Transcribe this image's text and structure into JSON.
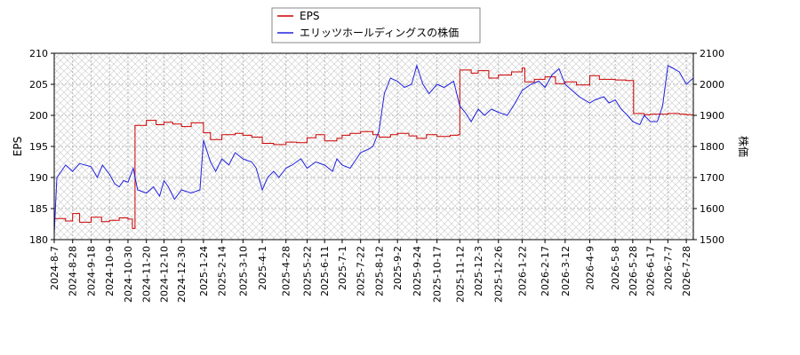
{
  "chart_data": {
    "type": "line",
    "title": "",
    "ylabel_left": "EPS",
    "ylabel_right": "株価",
    "ylim_left": [
      180,
      210
    ],
    "ylim_right": [
      1500,
      2100
    ],
    "yticks_left": [
      180,
      185,
      190,
      195,
      200,
      205,
      210
    ],
    "yticks_right": [
      1500,
      1600,
      1700,
      1800,
      1900,
      2000,
      2100
    ],
    "xlim": [
      "2024-08-07",
      "2026-08-05"
    ],
    "xticks": [
      "2024-8-7",
      "2024-8-28",
      "2024-9-18",
      "2024-10-9",
      "2024-10-30",
      "2024-11-20",
      "2024-12-10",
      "2024-12-30",
      "2025-1-24",
      "2025-2-14",
      "2025-3-10",
      "2025-4-1",
      "2025-4-28",
      "2025-5-22",
      "2025-6-11",
      "2025-7-1",
      "2025-7-22",
      "2025-8-12",
      "2025-9-2",
      "2025-9-24",
      "2025-10-17",
      "2025-11-12",
      "2025-12-3",
      "2025-12-26",
      "2026-1-22",
      "2026-2-17",
      "2026-3-12",
      "2026-4-9",
      "2026-5-8",
      "2026-5-28",
      "2026-6-17",
      "2026-7-7",
      "2026-7-28"
    ],
    "grid": true,
    "legend_position": "top-center",
    "series": [
      {
        "name": "EPS",
        "axis": "left",
        "color": "#cc0000",
        "points": [
          [
            "2024-08-07",
            183.4
          ],
          [
            "2024-08-20",
            183.0
          ],
          [
            "2024-08-28",
            184.2
          ],
          [
            "2024-09-05",
            182.8
          ],
          [
            "2024-09-18",
            183.6
          ],
          [
            "2024-09-30",
            182.9
          ],
          [
            "2024-10-09",
            183.1
          ],
          [
            "2024-10-20",
            183.5
          ],
          [
            "2024-10-30",
            183.3
          ],
          [
            "2024-11-04",
            181.8
          ],
          [
            "2024-11-07",
            198.4
          ],
          [
            "2024-11-20",
            199.2
          ],
          [
            "2024-12-01",
            198.5
          ],
          [
            "2024-12-10",
            198.9
          ],
          [
            "2024-12-20",
            198.6
          ],
          [
            "2024-12-30",
            198.2
          ],
          [
            "2025-01-10",
            198.8
          ],
          [
            "2025-01-24",
            197.2
          ],
          [
            "2025-02-01",
            196.1
          ],
          [
            "2025-02-14",
            196.9
          ],
          [
            "2025-03-01",
            197.1
          ],
          [
            "2025-03-10",
            196.8
          ],
          [
            "2025-03-20",
            196.5
          ],
          [
            "2025-04-01",
            195.5
          ],
          [
            "2025-04-14",
            195.3
          ],
          [
            "2025-04-28",
            195.7
          ],
          [
            "2025-05-10",
            195.6
          ],
          [
            "2025-05-22",
            196.4
          ],
          [
            "2025-06-01",
            196.9
          ],
          [
            "2025-06-11",
            195.9
          ],
          [
            "2025-06-25",
            196.3
          ],
          [
            "2025-07-01",
            196.8
          ],
          [
            "2025-07-10",
            197.1
          ],
          [
            "2025-07-22",
            197.4
          ],
          [
            "2025-08-05",
            196.9
          ],
          [
            "2025-08-12",
            196.5
          ],
          [
            "2025-08-25",
            196.9
          ],
          [
            "2025-09-02",
            197.1
          ],
          [
            "2025-09-15",
            196.7
          ],
          [
            "2025-09-24",
            196.3
          ],
          [
            "2025-10-05",
            196.9
          ],
          [
            "2025-10-17",
            196.6
          ],
          [
            "2025-11-01",
            196.8
          ],
          [
            "2025-11-10",
            196.9
          ],
          [
            "2025-11-12",
            207.3
          ],
          [
            "2025-11-25",
            206.8
          ],
          [
            "2025-12-03",
            207.2
          ],
          [
            "2025-12-15",
            206.0
          ],
          [
            "2025-12-26",
            206.5
          ],
          [
            "2026-01-10",
            207.0
          ],
          [
            "2026-01-22",
            207.6
          ],
          [
            "2026-01-25",
            205.4
          ],
          [
            "2026-02-05",
            205.8
          ],
          [
            "2026-02-17",
            206.2
          ],
          [
            "2026-03-01",
            205.1
          ],
          [
            "2026-03-12",
            205.4
          ],
          [
            "2026-03-25",
            204.9
          ],
          [
            "2026-04-09",
            206.4
          ],
          [
            "2026-04-20",
            205.8
          ],
          [
            "2026-05-08",
            205.7
          ],
          [
            "2026-05-20",
            205.6
          ],
          [
            "2026-05-28",
            205.6
          ],
          [
            "2026-05-29",
            200.3
          ],
          [
            "2026-06-10",
            200.1
          ],
          [
            "2026-06-17",
            200.2
          ],
          [
            "2026-07-07",
            200.3
          ],
          [
            "2026-07-20",
            200.2
          ],
          [
            "2026-07-28",
            200.1
          ],
          [
            "2026-08-05",
            200.2
          ]
        ]
      },
      {
        "name": "エリッツホールディングスの株価",
        "axis": "right",
        "color": "#2222dd",
        "points": [
          [
            "2024-08-07",
            1520
          ],
          [
            "2024-08-10",
            1700
          ],
          [
            "2024-08-20",
            1740
          ],
          [
            "2024-08-28",
            1720
          ],
          [
            "2024-09-05",
            1745
          ],
          [
            "2024-09-18",
            1735
          ],
          [
            "2024-09-25",
            1700
          ],
          [
            "2024-10-01",
            1740
          ],
          [
            "2024-10-09",
            1710
          ],
          [
            "2024-10-15",
            1680
          ],
          [
            "2024-10-20",
            1670
          ],
          [
            "2024-10-25",
            1690
          ],
          [
            "2024-10-30",
            1685
          ],
          [
            "2024-11-05",
            1730
          ],
          [
            "2024-11-10",
            1660
          ],
          [
            "2024-11-20",
            1650
          ],
          [
            "2024-11-28",
            1670
          ],
          [
            "2024-12-05",
            1640
          ],
          [
            "2024-12-10",
            1690
          ],
          [
            "2024-12-15",
            1670
          ],
          [
            "2024-12-22",
            1630
          ],
          [
            "2024-12-30",
            1660
          ],
          [
            "2025-01-10",
            1650
          ],
          [
            "2025-01-20",
            1660
          ],
          [
            "2025-01-24",
            1820
          ],
          [
            "2025-02-01",
            1750
          ],
          [
            "2025-02-07",
            1720
          ],
          [
            "2025-02-14",
            1760
          ],
          [
            "2025-02-22",
            1740
          ],
          [
            "2025-03-01",
            1780
          ],
          [
            "2025-03-10",
            1760
          ],
          [
            "2025-03-20",
            1750
          ],
          [
            "2025-03-25",
            1730
          ],
          [
            "2025-04-01",
            1660
          ],
          [
            "2025-04-07",
            1700
          ],
          [
            "2025-04-14",
            1720
          ],
          [
            "2025-04-20",
            1700
          ],
          [
            "2025-04-28",
            1730
          ],
          [
            "2025-05-05",
            1740
          ],
          [
            "2025-05-15",
            1760
          ],
          [
            "2025-05-22",
            1730
          ],
          [
            "2025-06-01",
            1750
          ],
          [
            "2025-06-11",
            1740
          ],
          [
            "2025-06-20",
            1720
          ],
          [
            "2025-06-25",
            1760
          ],
          [
            "2025-07-01",
            1740
          ],
          [
            "2025-07-10",
            1730
          ],
          [
            "2025-07-22",
            1780
          ],
          [
            "2025-07-30",
            1790
          ],
          [
            "2025-08-05",
            1800
          ],
          [
            "2025-08-12",
            1850
          ],
          [
            "2025-08-18",
            1970
          ],
          [
            "2025-08-25",
            2020
          ],
          [
            "2025-09-02",
            2010
          ],
          [
            "2025-09-10",
            1990
          ],
          [
            "2025-09-18",
            2000
          ],
          [
            "2025-09-24",
            2060
          ],
          [
            "2025-10-01",
            2000
          ],
          [
            "2025-10-08",
            1970
          ],
          [
            "2025-10-17",
            2000
          ],
          [
            "2025-10-25",
            1990
          ],
          [
            "2025-11-05",
            2010
          ],
          [
            "2025-11-12",
            1930
          ],
          [
            "2025-11-18",
            1910
          ],
          [
            "2025-11-25",
            1880
          ],
          [
            "2025-12-03",
            1920
          ],
          [
            "2025-12-10",
            1900
          ],
          [
            "2025-12-18",
            1920
          ],
          [
            "2025-12-26",
            1910
          ],
          [
            "2026-01-05",
            1900
          ],
          [
            "2026-01-12",
            1930
          ],
          [
            "2026-01-22",
            1980
          ],
          [
            "2026-02-01",
            2000
          ],
          [
            "2026-02-10",
            2010
          ],
          [
            "2026-02-17",
            1990
          ],
          [
            "2026-02-25",
            2030
          ],
          [
            "2026-03-05",
            2050
          ],
          [
            "2026-03-12",
            2000
          ],
          [
            "2026-03-20",
            1980
          ],
          [
            "2026-03-28",
            1960
          ],
          [
            "2026-04-09",
            1940
          ],
          [
            "2026-04-15",
            1950
          ],
          [
            "2026-04-25",
            1960
          ],
          [
            "2026-05-01",
            1940
          ],
          [
            "2026-05-08",
            1950
          ],
          [
            "2026-05-15",
            1920
          ],
          [
            "2026-05-22",
            1900
          ],
          [
            "2026-05-28",
            1880
          ],
          [
            "2026-06-05",
            1870
          ],
          [
            "2026-06-10",
            1900
          ],
          [
            "2026-06-17",
            1880
          ],
          [
            "2026-06-25",
            1880
          ],
          [
            "2026-07-01",
            1930
          ],
          [
            "2026-07-07",
            2060
          ],
          [
            "2026-07-14",
            2050
          ],
          [
            "2026-07-20",
            2040
          ],
          [
            "2026-07-28",
            2000
          ],
          [
            "2026-08-05",
            2020
          ]
        ]
      }
    ]
  }
}
